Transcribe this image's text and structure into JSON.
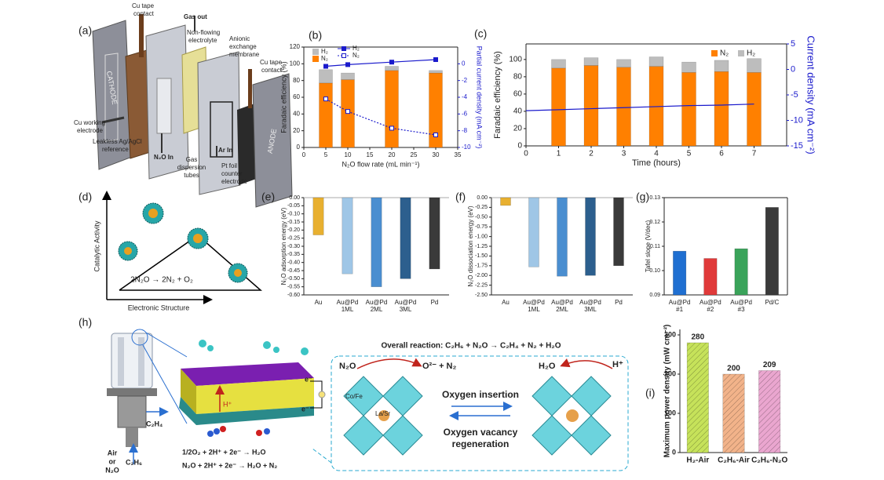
{
  "chart_data": [
    {
      "type": "bar",
      "panel_label": "(b)",
      "stacked": true,
      "x_label": "N₂O flow rate (mL min⁻¹)",
      "y_label": "Faradaic efficiency (%)",
      "y2_label": "Partial current density (mA cm⁻²)",
      "y2_color": "#1a1acc",
      "x": [
        5,
        10,
        20,
        30
      ],
      "xlim": [
        0,
        35
      ],
      "xticks": [
        0,
        5,
        10,
        15,
        20,
        25,
        30,
        35
      ],
      "ylim": [
        0,
        120
      ],
      "yticks": [
        0,
        20,
        40,
        60,
        80,
        100,
        120
      ],
      "y2lim": [
        -10,
        2
      ],
      "y2ticks": [
        0,
        -2,
        -4,
        -6,
        -8,
        -10
      ],
      "series": [
        {
          "name": "N₂",
          "type": "bar",
          "color": "#ff8000",
          "values": [
            77,
            81,
            92,
            89
          ]
        },
        {
          "name": "H₂",
          "type": "bar",
          "color": "#bdbdbd",
          "values": [
            16,
            8,
            5,
            3
          ]
        },
        {
          "name": "H₂",
          "type": "line",
          "axis": "y2",
          "color": "#1a1acc",
          "marker": "filled",
          "values": [
            -0.3,
            -0.1,
            0.2,
            0.5
          ]
        },
        {
          "name": "N₂",
          "type": "line",
          "axis": "y2",
          "color": "#1a1acc",
          "marker": "open",
          "dash": "dotted",
          "values": [
            -4.2,
            -5.7,
            -7.7,
            -8.5
          ]
        }
      ]
    },
    {
      "type": "bar",
      "panel_label": "(c)",
      "stacked": true,
      "x_label": "Time (hours)",
      "y_label": "Faradaic efficiency (%)",
      "y2_label": "Current density (mA cm⁻²)",
      "y2_color": "#1a1acc",
      "x": [
        1,
        2,
        3,
        4,
        5,
        6,
        7
      ],
      "xlim": [
        0,
        8
      ],
      "xticks": [
        0,
        1,
        2,
        3,
        4,
        5,
        6,
        7
      ],
      "ylim": [
        0,
        118
      ],
      "yticks": [
        0,
        20,
        40,
        60,
        80,
        100
      ],
      "y2lim": [
        -15,
        5
      ],
      "y2ticks": [
        5,
        0,
        -5,
        -10,
        -15
      ],
      "series": [
        {
          "name": "N₂",
          "type": "bar",
          "color": "#ff8000",
          "values": [
            90,
            93,
            91,
            92,
            85,
            86,
            85
          ]
        },
        {
          "name": "H₂",
          "type": "bar",
          "color": "#bdbdbd",
          "values": [
            10,
            9,
            9,
            11,
            12,
            13,
            16
          ]
        },
        {
          "type": "line",
          "axis": "y2",
          "color": "#1a1acc",
          "x": [
            0,
            1,
            2,
            3,
            4,
            5,
            6,
            7
          ],
          "values": [
            -8.1,
            -7.9,
            -7.7,
            -7.5,
            -7.3,
            -7.1,
            -7.0,
            -6.8
          ]
        }
      ]
    },
    {
      "type": "bar",
      "panel_label": "(e)",
      "y_label": "N₂O adsorption energy (eV)",
      "categories": [
        "Au",
        "Au@Pd 1ML",
        "Au@Pd 2ML",
        "Au@Pd 3ML",
        "Pd"
      ],
      "values": [
        -0.23,
        -0.47,
        -0.55,
        -0.5,
        -0.44
      ],
      "colors": [
        "#e8b030",
        "#9fc6e6",
        "#4a8ed0",
        "#2c5f8e",
        "#3a3a3a"
      ],
      "ylim": [
        -0.6,
        0
      ],
      "yticks": [
        {
          "value": 0,
          "label": "0.00"
        },
        -0.05,
        {
          "value": -0.1,
          "label": "-0.10"
        },
        -0.15,
        {
          "value": -0.2,
          "label": "-0.20"
        },
        -0.25,
        {
          "value": -0.3,
          "label": "-0.30"
        },
        -0.35,
        {
          "value": -0.4,
          "label": "-0.40"
        },
        -0.45,
        {
          "value": -0.5,
          "label": "-0.50"
        },
        -0.55,
        {
          "value": -0.6,
          "label": "-0.60"
        }
      ]
    },
    {
      "type": "bar",
      "panel_label": "(f)",
      "y_label": "N₂O dissociation energy (eV)",
      "categories": [
        "Au",
        "Au@Pd 1ML",
        "Au@Pd 2ML",
        "Au@Pd 3ML",
        "Pd"
      ],
      "values": [
        -0.2,
        -1.78,
        -2.02,
        -2.0,
        -1.75
      ],
      "colors": [
        "#e8b030",
        "#9fc6e6",
        "#4a8ed0",
        "#2c5f8e",
        "#3a3a3a"
      ],
      "ylim": [
        -2.5,
        0
      ],
      "yticks": [
        {
          "value": 0,
          "label": "0.00"
        },
        -0.25,
        {
          "value": -0.5,
          "label": "-0.50"
        },
        -0.75,
        {
          "value": -1,
          "label": "-1.00"
        },
        -1.25,
        {
          "value": -1.5,
          "label": "-1.50"
        },
        -1.75,
        {
          "value": -2,
          "label": "-2.00"
        },
        -2.25,
        {
          "value": -2.5,
          "label": "-2.50"
        }
      ]
    },
    {
      "type": "bar",
      "panel_label": "(g)",
      "y_label": "Tafel slope (V/dec)",
      "categories": [
        "Au@Pd #1",
        "Au@Pd #2",
        "Au@Pd #3",
        "Pd/C"
      ],
      "values": [
        0.108,
        0.105,
        0.109,
        0.126
      ],
      "colors": [
        "#1f6fd1",
        "#e03a3a",
        "#3aa35a",
        "#3a3a3a"
      ],
      "ylim": [
        0.09,
        0.13
      ],
      "yticks": [
        0.09,
        {
          "value": 0.1,
          "label": "0.10"
        },
        0.11,
        0.12,
        0.13
      ]
    },
    {
      "type": "bar",
      "panel_label": "(i)",
      "y_label": "Maximum power density (mW cm⁻²)",
      "show_values": true,
      "categories": [
        "H₂-Air",
        "C₂H₆-Air",
        "C₂H₆-N₂O"
      ],
      "values": [
        280,
        200,
        209
      ],
      "colors": [
        "#c6e25a",
        "#f2b38a",
        "#eaa6cf"
      ],
      "ylim": [
        0,
        314
      ],
      "yticks": [
        0,
        100,
        200,
        300
      ]
    }
  ],
  "diagrams": {
    "a": {
      "label": "(a)",
      "cu_tape_1": [
        "Cu tape",
        "contact"
      ],
      "gas_out": "Gas out",
      "electrolyte": [
        "Non-flowing",
        "electrolyte"
      ],
      "membrane": [
        "Anionic",
        "exchange",
        "membrane"
      ],
      "cu_tape_2": [
        "Cu tape",
        "contact"
      ],
      "cathode": "CATHODE",
      "anode": "ANODE",
      "cu_electrode": [
        "Cu working",
        "electrode"
      ],
      "reference": [
        "Leakless Ag/AgCl",
        "reference"
      ],
      "n2o_in": "N₂O In",
      "tubes": [
        "Gas",
        "dispersion",
        "tubes"
      ],
      "ar_in": "Ar In",
      "pt_foil": [
        "Pt foil",
        "counter",
        "electrode"
      ]
    },
    "d": {
      "label": "(d)",
      "y_axis": "Catalytic Activity",
      "x_axis": "Electronic Structure",
      "reaction": "2N₂O → 2N₂ + O₂"
    },
    "h": {
      "label": "(h)",
      "overall": "Overall reaction:  C₂H₆ + N₂O → C₂H₄ + N₂ + H₂O",
      "c2h4": "C₂H₄",
      "air": [
        "Air",
        "or",
        "N₂O"
      ],
      "c2h6": "C₂H₆",
      "h_plus_cell": "H⁺",
      "e1": "e⁻",
      "e2": "e⁻",
      "eq1": "1/2O₂ + 2H⁺ + 2e⁻ → H₂O",
      "eq2": "N₂O  + 2H⁺ + 2e⁻ → H₂O + N₂",
      "n2o": "N₂O",
      "o2_n2": "O²⁻ + N₂",
      "h2o": "H₂O",
      "h_plus": "H⁺",
      "cofe": "Co/Fe",
      "lasr": "La/Sr",
      "insertion": "Oxygen insertion",
      "regeneration": [
        "Oxygen vacancy",
        "regeneration"
      ]
    }
  }
}
